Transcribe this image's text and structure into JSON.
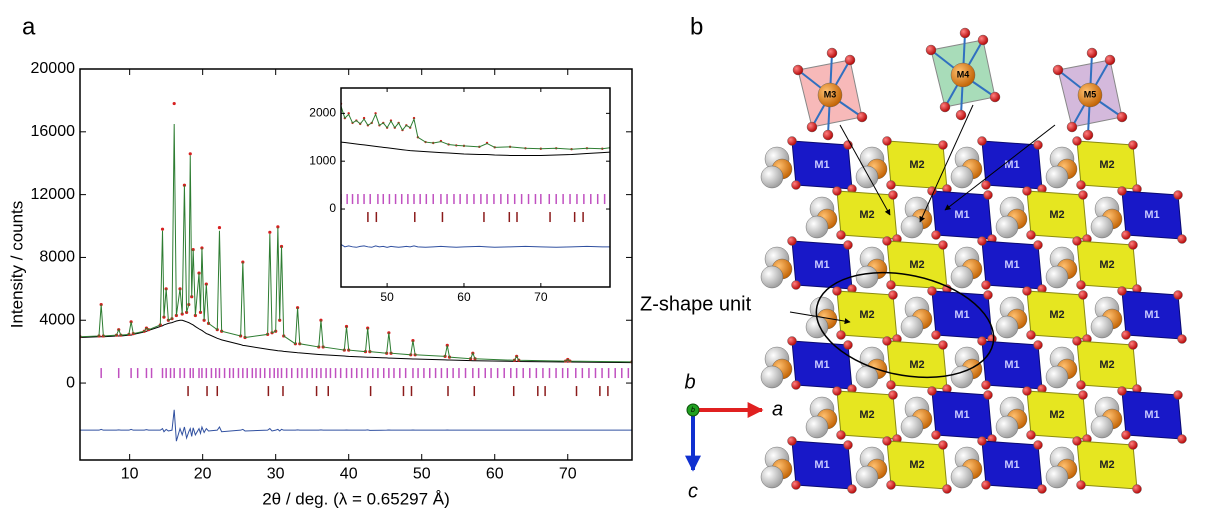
{
  "panel_labels": [
    "a",
    "b"
  ],
  "chart_data": [
    {
      "type": "line",
      "xlabel": "2θ / deg. (λ = 0.65297 Å)",
      "ylabel": "Intensity / counts",
      "xlim": [
        3.2,
        78.8
      ],
      "ylim": [
        -4900,
        20000
      ],
      "xticks": [
        10,
        20,
        30,
        40,
        50,
        60,
        70
      ],
      "yticks": [
        0,
        4000,
        8000,
        12000,
        16000,
        20000
      ],
      "x": [
        3.2,
        5.8,
        6.1,
        6.4,
        8.2,
        8.5,
        8.8,
        9.9,
        10.2,
        10.5,
        12.0,
        12.3,
        12.6,
        14.2,
        14.5,
        14.7,
        15.0,
        15.3,
        15.8,
        16.1,
        16.4,
        16.9,
        17.2,
        17.5,
        17.8,
        18.1,
        18.3,
        18.5,
        18.7,
        19.0,
        19.5,
        19.7,
        19.9,
        20.2,
        20.5,
        20.8,
        22.0,
        22.3,
        22.6,
        25.2,
        25.5,
        25.8,
        28.9,
        29.2,
        29.5,
        30.0,
        30.3,
        30.55,
        30.8,
        31.1,
        32.7,
        33.0,
        33.3,
        35.9,
        36.2,
        36.5,
        39.4,
        39.7,
        40.0,
        42.3,
        42.6,
        42.9,
        45.2,
        45.5,
        45.8,
        48.5,
        48.8,
        49.1,
        53.2,
        53.5,
        53.8,
        56.7,
        57.0,
        57.3,
        62.7,
        63.0,
        63.3,
        69.7,
        70.0,
        70.3,
        78.8
      ],
      "series": [
        {
          "color": "#000000",
          "marker": "line",
          "values": [
            2900,
            2950,
            2950,
            2950,
            3000,
            3000,
            3000,
            3050,
            3050,
            3100,
            3250,
            3300,
            3350,
            3600,
            3650,
            3700,
            3750,
            3800,
            3850,
            3900,
            3950,
            4000,
            4000,
            3950,
            3900,
            3850,
            3800,
            3750,
            3700,
            3600,
            3450,
            3400,
            3350,
            3250,
            3150,
            3100,
            2850,
            2800,
            2750,
            2450,
            2400,
            2380,
            2150,
            2130,
            2110,
            2080,
            2060,
            2050,
            2040,
            2020,
            1950,
            1930,
            1920,
            1820,
            1810,
            1800,
            1720,
            1710,
            1700,
            1650,
            1640,
            1640,
            1600,
            1590,
            1590,
            1540,
            1530,
            1530,
            1480,
            1470,
            1470,
            1430,
            1420,
            1420,
            1380,
            1380,
            1370,
            1340,
            1340,
            1340,
            1300
          ]
        },
        {
          "color": "#d62020",
          "marker": "dot",
          "values": [
            2950,
            3000,
            5000,
            3000,
            3050,
            3400,
            3050,
            3100,
            3900,
            3150,
            3300,
            3500,
            3400,
            3700,
            9800,
            4200,
            6000,
            4000,
            4100,
            17800,
            4300,
            6000,
            4400,
            12600,
            4500,
            5000,
            14600,
            5500,
            8500,
            4300,
            7000,
            4500,
            8600,
            4000,
            6300,
            3800,
            3400,
            9900,
            3300,
            3000,
            7700,
            2900,
            3100,
            9600,
            3200,
            3300,
            9950,
            4000,
            8700,
            3000,
            2500,
            4800,
            2500,
            2300,
            4000,
            2300,
            2100,
            3600,
            2100,
            2000,
            3500,
            2000,
            1900,
            3200,
            1900,
            1800,
            2700,
            1800,
            1700,
            2400,
            1650,
            1550,
            1900,
            1550,
            1450,
            1700,
            1450,
            1400,
            1500,
            1400,
            1350
          ]
        },
        {
          "color": "#2e7d32",
          "marker": "line",
          "values": [
            2950,
            3000,
            5000,
            3000,
            3050,
            3400,
            3050,
            3100,
            3900,
            3150,
            3300,
            3500,
            3400,
            3700,
            9700,
            4200,
            6000,
            4000,
            4100,
            16500,
            4300,
            6000,
            4400,
            12600,
            4500,
            5000,
            14500,
            5500,
            8500,
            4300,
            7000,
            4500,
            8600,
            4000,
            6300,
            3800,
            3400,
            9700,
            3300,
            3000,
            7700,
            2900,
            3100,
            9500,
            3200,
            3300,
            9900,
            4000,
            8700,
            3000,
            2500,
            4800,
            2500,
            2300,
            4000,
            2300,
            2100,
            3600,
            2100,
            2000,
            3500,
            2000,
            1900,
            3200,
            1900,
            1800,
            2700,
            1800,
            1700,
            2400,
            1650,
            1550,
            1900,
            1550,
            1450,
            1700,
            1450,
            1400,
            1500,
            1400,
            1350
          ]
        },
        {
          "color": "#3050a0",
          "marker": "line",
          "values": [
            -3000,
            -3000,
            -2950,
            -3000,
            -3000,
            -2980,
            -3000,
            -3000,
            -2950,
            -3000,
            -3000,
            -2970,
            -3000,
            -3000,
            -2900,
            -3100,
            -2950,
            -3050,
            -3000,
            -1700,
            -3700,
            -2900,
            -3300,
            -2800,
            -3500,
            -3100,
            -2900,
            -3400,
            -2850,
            -3300,
            -2900,
            -3200,
            -2800,
            -3150,
            -2900,
            -3050,
            -3000,
            -2800,
            -3100,
            -3000,
            -2950,
            -3050,
            -3000,
            -2900,
            -3050,
            -3000,
            -2950,
            -3050,
            -2950,
            -3000,
            -3000,
            -2980,
            -3000,
            -3000,
            -2980,
            -3000,
            -3000,
            -2990,
            -3000,
            -3000,
            -2980,
            -3010,
            -3000,
            -2990,
            -3000,
            -3000,
            -2990,
            -3000,
            -3000,
            -2990,
            -3000,
            -3000,
            -2995,
            -3000,
            -3000,
            -2995,
            -3000,
            -3000,
            -2995,
            -3000,
            -3000
          ]
        }
      ],
      "reflection_ticks": [
        {
          "color": "#c050c0",
          "x": [
            6.1,
            8.5,
            10.2,
            11.1,
            12.3,
            13.0,
            14.5,
            15.0,
            15.6,
            16.1,
            16.9,
            17.5,
            18.3,
            18.7,
            19.5,
            19.9,
            20.5,
            21.2,
            21.8,
            22.3,
            23.0,
            23.7,
            24.2,
            24.9,
            25.5,
            26.1,
            26.8,
            27.3,
            27.9,
            28.5,
            29.2,
            29.8,
            30.3,
            30.8,
            31.5,
            32.2,
            33.0,
            33.6,
            34.3,
            35.0,
            35.6,
            36.2,
            36.9,
            37.5,
            38.2,
            38.9,
            39.7,
            40.4,
            41.1,
            41.8,
            42.6,
            43.3,
            44.0,
            44.8,
            45.5,
            46.2,
            47.0,
            47.8,
            48.8,
            49.5,
            50.3,
            51.1,
            51.9,
            52.7,
            53.5,
            54.3,
            55.1,
            56.0,
            57.0,
            57.8,
            58.7,
            59.5,
            60.4,
            61.3,
            62.2,
            63.0,
            63.9,
            64.8,
            65.7,
            66.6,
            67.5,
            68.4,
            69.3,
            70.0,
            71.1,
            72.0,
            72.9,
            73.8,
            74.7,
            75.6,
            76.5,
            77.4,
            78.3
          ]
        },
        {
          "color": "#8b1a1a",
          "x": [
            18.0,
            20.6,
            22.0,
            29.0,
            31.0,
            35.6,
            37.2,
            43.0,
            47.5,
            48.6,
            53.6,
            57.2,
            62.6,
            65.9,
            66.9,
            71.2,
            74.4,
            75.5
          ]
        }
      ]
    },
    {
      "type": "line",
      "xlim": [
        44,
        79
      ],
      "ylim": [
        -1630,
        2530
      ],
      "xticks": [
        50,
        60,
        70
      ],
      "yticks": [
        0,
        1000,
        2000
      ],
      "x": [
        44,
        44.5,
        45,
        45.5,
        46,
        46.5,
        47,
        47.5,
        48,
        48.5,
        49,
        49.5,
        50,
        50.5,
        51,
        51.5,
        52,
        52.5,
        53,
        53.5,
        54,
        55,
        56,
        57,
        58,
        59,
        60,
        62,
        63,
        64,
        66,
        68,
        70,
        72,
        74,
        76,
        78,
        79
      ],
      "series": [
        {
          "color": "#000000",
          "marker": "line",
          "values": [
            1400,
            1390,
            1380,
            1370,
            1360,
            1350,
            1340,
            1330,
            1320,
            1310,
            1300,
            1290,
            1280,
            1270,
            1260,
            1250,
            1240,
            1230,
            1220,
            1215,
            1210,
            1200,
            1190,
            1180,
            1170,
            1160,
            1150,
            1140,
            1140,
            1130,
            1120,
            1120,
            1120,
            1130,
            1140,
            1160,
            1180,
            1190
          ]
        },
        {
          "color": "#d62020",
          "marker": "dot",
          "values": [
            2200,
            1900,
            2000,
            1800,
            1850,
            1780,
            1900,
            1750,
            1800,
            2000,
            1750,
            1800,
            1700,
            1850,
            1700,
            1800,
            1650,
            1750,
            1700,
            1900,
            1500,
            1400,
            1380,
            1420,
            1350,
            1330,
            1320,
            1300,
            1380,
            1290,
            1300,
            1270,
            1260,
            1270,
            1250,
            1270,
            1260,
            1280
          ]
        },
        {
          "color": "#2e7d32",
          "marker": "line",
          "values": [
            2150,
            1900,
            1980,
            1800,
            1850,
            1780,
            1880,
            1750,
            1800,
            1980,
            1750,
            1800,
            1700,
            1840,
            1700,
            1800,
            1650,
            1750,
            1700,
            1880,
            1500,
            1400,
            1380,
            1410,
            1350,
            1330,
            1320,
            1300,
            1370,
            1290,
            1300,
            1270,
            1260,
            1270,
            1250,
            1270,
            1260,
            1280
          ]
        },
        {
          "color": "#3050a0",
          "marker": "line",
          "values": [
            -740,
            -790,
            -770,
            -790,
            -800,
            -780,
            -770,
            -790,
            -800,
            -770,
            -790,
            -780,
            -800,
            -780,
            -790,
            -800,
            -790,
            -780,
            -790,
            -770,
            -790,
            -800,
            -790,
            -780,
            -790,
            -800,
            -790,
            -780,
            -790,
            -800,
            -790,
            -780,
            -790,
            -800,
            -790,
            -780,
            -790,
            -790
          ]
        }
      ],
      "reflection_ticks": [
        {
          "color": "#c050c0",
          "x": [
            44.0,
            44.8,
            45.5,
            46.2,
            47.0,
            47.8,
            48.8,
            49.5,
            50.3,
            51.1,
            51.9,
            52.7,
            53.5,
            54.3,
            55.1,
            56.0,
            57.0,
            57.8,
            58.7,
            59.5,
            60.4,
            61.3,
            62.2,
            63.0,
            63.9,
            64.8,
            65.7,
            66.6,
            67.5,
            68.4,
            69.3,
            70.0,
            71.1,
            72.0,
            72.9,
            73.8,
            74.7,
            75.6,
            76.5,
            77.4,
            78.3
          ]
        },
        {
          "color": "#8b1a1a",
          "x": [
            47.5,
            48.6,
            53.6,
            57.2,
            62.6,
            65.9,
            66.9,
            71.2,
            74.4,
            75.5
          ]
        }
      ]
    }
  ],
  "structure": {
    "top_polyhedra": [
      "M3",
      "M4",
      "M5"
    ],
    "rows": [
      [
        "M1",
        "M2",
        "M1",
        "M2"
      ],
      [
        "M2",
        "M1",
        "M2",
        "M1"
      ],
      [
        "M1",
        "M2",
        "M1",
        "M2"
      ],
      [
        "M2",
        "M1",
        "M2",
        "M1"
      ],
      [
        "M1",
        "M2",
        "M1",
        "M2"
      ],
      [
        "M2",
        "M1",
        "M2",
        "M1"
      ],
      [
        "M1",
        "M2",
        "M1",
        "M2"
      ]
    ],
    "annotation": "Z-shape unit",
    "axes": {
      "origin": "b",
      "view": "b",
      "right": "a",
      "down": "c"
    }
  }
}
